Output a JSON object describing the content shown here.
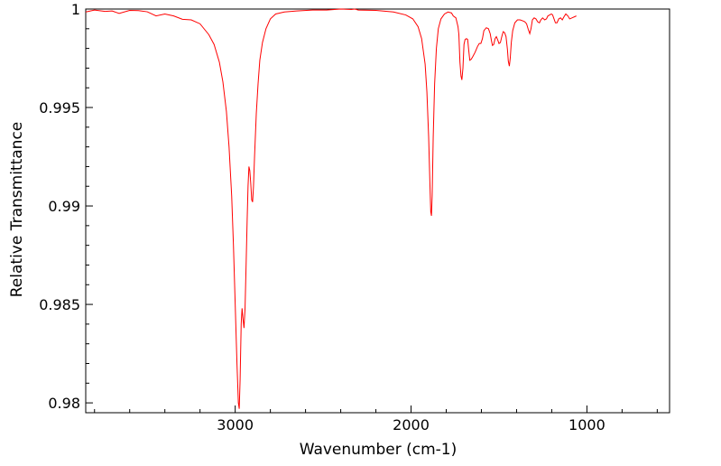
{
  "chart_data": {
    "type": "line",
    "title": "",
    "xlabel": "Wavenumber (cm-1)",
    "ylabel": "Relative Transmittance",
    "xlim": [
      3850,
      530
    ],
    "ylim": [
      0.9795,
      1.0
    ],
    "x_reversed": true,
    "grid": false,
    "x_ticks": [
      3000,
      2000,
      1000
    ],
    "x_tick_labels": [
      "3000",
      "2000",
      "1000"
    ],
    "y_ticks": [
      0.98,
      0.985,
      0.99,
      0.995,
      1.0
    ],
    "y_tick_labels": [
      "0.98",
      "0.985",
      "0.99",
      "0.995",
      "1"
    ],
    "series": [
      {
        "color": "#ff0000",
        "points": [
          [
            3850,
            0.99985
          ],
          [
            3800,
            0.99995
          ],
          [
            3740,
            0.99988
          ],
          [
            3700,
            0.9999
          ],
          [
            3660,
            0.99978
          ],
          [
            3600,
            0.99993
          ],
          [
            3550,
            0.99992
          ],
          [
            3500,
            0.99986
          ],
          [
            3450,
            0.99965
          ],
          [
            3400,
            0.99975
          ],
          [
            3350,
            0.99965
          ],
          [
            3300,
            0.99948
          ],
          [
            3250,
            0.99945
          ],
          [
            3200,
            0.99925
          ],
          [
            3150,
            0.9987
          ],
          [
            3120,
            0.9982
          ],
          [
            3090,
            0.9973
          ],
          [
            3070,
            0.9963
          ],
          [
            3050,
            0.9948
          ],
          [
            3035,
            0.993
          ],
          [
            3020,
            0.9905
          ],
          [
            3010,
            0.988
          ],
          [
            3000,
            0.985
          ],
          [
            2990,
            0.982
          ],
          [
            2982,
            0.98
          ],
          [
            2977,
            0.9797
          ],
          [
            2972,
            0.9812
          ],
          [
            2966,
            0.984
          ],
          [
            2961,
            0.9848
          ],
          [
            2956,
            0.9843
          ],
          [
            2950,
            0.9838
          ],
          [
            2944,
            0.9848
          ],
          [
            2938,
            0.987
          ],
          [
            2932,
            0.9893
          ],
          [
            2927,
            0.991
          ],
          [
            2922,
            0.992
          ],
          [
            2917,
            0.9918
          ],
          [
            2912,
            0.9912
          ],
          [
            2906,
            0.9903
          ],
          [
            2901,
            0.9902
          ],
          [
            2896,
            0.991
          ],
          [
            2890,
            0.9925
          ],
          [
            2880,
            0.9947
          ],
          [
            2870,
            0.9962
          ],
          [
            2860,
            0.9974
          ],
          [
            2845,
            0.9983
          ],
          [
            2825,
            0.999
          ],
          [
            2800,
            0.9995
          ],
          [
            2770,
            0.99975
          ],
          [
            2720,
            0.99985
          ],
          [
            2650,
            0.9999
          ],
          [
            2560,
            0.99995
          ],
          [
            2480,
            0.99995
          ],
          [
            2400,
            1.0
          ],
          [
            2340,
            0.99998
          ],
          [
            2320,
            1.0
          ],
          [
            2300,
            0.99995
          ],
          [
            2200,
            0.99993
          ],
          [
            2100,
            0.99985
          ],
          [
            2030,
            0.9997
          ],
          [
            1990,
            0.9995
          ],
          [
            1960,
            0.9991
          ],
          [
            1940,
            0.9985
          ],
          [
            1920,
            0.9972
          ],
          [
            1910,
            0.9958
          ],
          [
            1900,
            0.9935
          ],
          [
            1893,
            0.9912
          ],
          [
            1888,
            0.9897
          ],
          [
            1884,
            0.9895
          ],
          [
            1880,
            0.9905
          ],
          [
            1874,
            0.9935
          ],
          [
            1866,
            0.9962
          ],
          [
            1856,
            0.998
          ],
          [
            1845,
            0.999
          ],
          [
            1830,
            0.9995
          ],
          [
            1810,
            0.99975
          ],
          [
            1790,
            0.99985
          ],
          [
            1770,
            0.9998
          ],
          [
            1760,
            0.99965
          ],
          [
            1745,
            0.99955
          ],
          [
            1733,
            0.9991
          ],
          [
            1728,
            0.9987
          ],
          [
            1722,
            0.9973
          ],
          [
            1716,
            0.9966
          ],
          [
            1711,
            0.9964
          ],
          [
            1705,
            0.997
          ],
          [
            1699,
            0.9982
          ],
          [
            1693,
            0.99845
          ],
          [
            1685,
            0.9985
          ],
          [
            1678,
            0.99845
          ],
          [
            1672,
            0.9979
          ],
          [
            1666,
            0.9974
          ],
          [
            1658,
            0.99745
          ],
          [
            1648,
            0.9976
          ],
          [
            1636,
            0.9978
          ],
          [
            1622,
            0.9981
          ],
          [
            1612,
            0.99825
          ],
          [
            1603,
            0.99825
          ],
          [
            1594,
            0.9985
          ],
          [
            1586,
            0.9989
          ],
          [
            1572,
            0.99905
          ],
          [
            1560,
            0.999
          ],
          [
            1550,
            0.99875
          ],
          [
            1543,
            0.9984
          ],
          [
            1537,
            0.99815
          ],
          [
            1530,
            0.9982
          ],
          [
            1522,
            0.9985
          ],
          [
            1515,
            0.9986
          ],
          [
            1508,
            0.99845
          ],
          [
            1500,
            0.99825
          ],
          [
            1492,
            0.9983
          ],
          [
            1484,
            0.9986
          ],
          [
            1476,
            0.99885
          ],
          [
            1468,
            0.9988
          ],
          [
            1460,
            0.9986
          ],
          [
            1452,
            0.99795
          ],
          [
            1447,
            0.99735
          ],
          [
            1441,
            0.9971
          ],
          [
            1436,
            0.9975
          ],
          [
            1430,
            0.9983
          ],
          [
            1422,
            0.9989
          ],
          [
            1410,
            0.9993
          ],
          [
            1395,
            0.99945
          ],
          [
            1380,
            0.99945
          ],
          [
            1365,
            0.9994
          ],
          [
            1353,
            0.99935
          ],
          [
            1343,
            0.99925
          ],
          [
            1333,
            0.99895
          ],
          [
            1325,
            0.99875
          ],
          [
            1318,
            0.999
          ],
          [
            1310,
            0.99945
          ],
          [
            1300,
            0.99955
          ],
          [
            1290,
            0.9995
          ],
          [
            1280,
            0.99935
          ],
          [
            1270,
            0.9993
          ],
          [
            1262,
            0.99945
          ],
          [
            1252,
            0.99955
          ],
          [
            1240,
            0.99945
          ],
          [
            1230,
            0.9995
          ],
          [
            1222,
            0.99965
          ],
          [
            1212,
            0.9997
          ],
          [
            1202,
            0.99975
          ],
          [
            1195,
            0.9997
          ],
          [
            1187,
            0.9995
          ],
          [
            1179,
            0.9993
          ],
          [
            1170,
            0.9993
          ],
          [
            1160,
            0.9995
          ],
          [
            1150,
            0.99955
          ],
          [
            1140,
            0.99945
          ],
          [
            1131,
            0.9996
          ],
          [
            1120,
            0.99975
          ],
          [
            1108,
            0.99965
          ],
          [
            1098,
            0.9995
          ],
          [
            1085,
            0.99955
          ],
          [
            1060,
            0.99965
          ]
        ]
      }
    ]
  }
}
